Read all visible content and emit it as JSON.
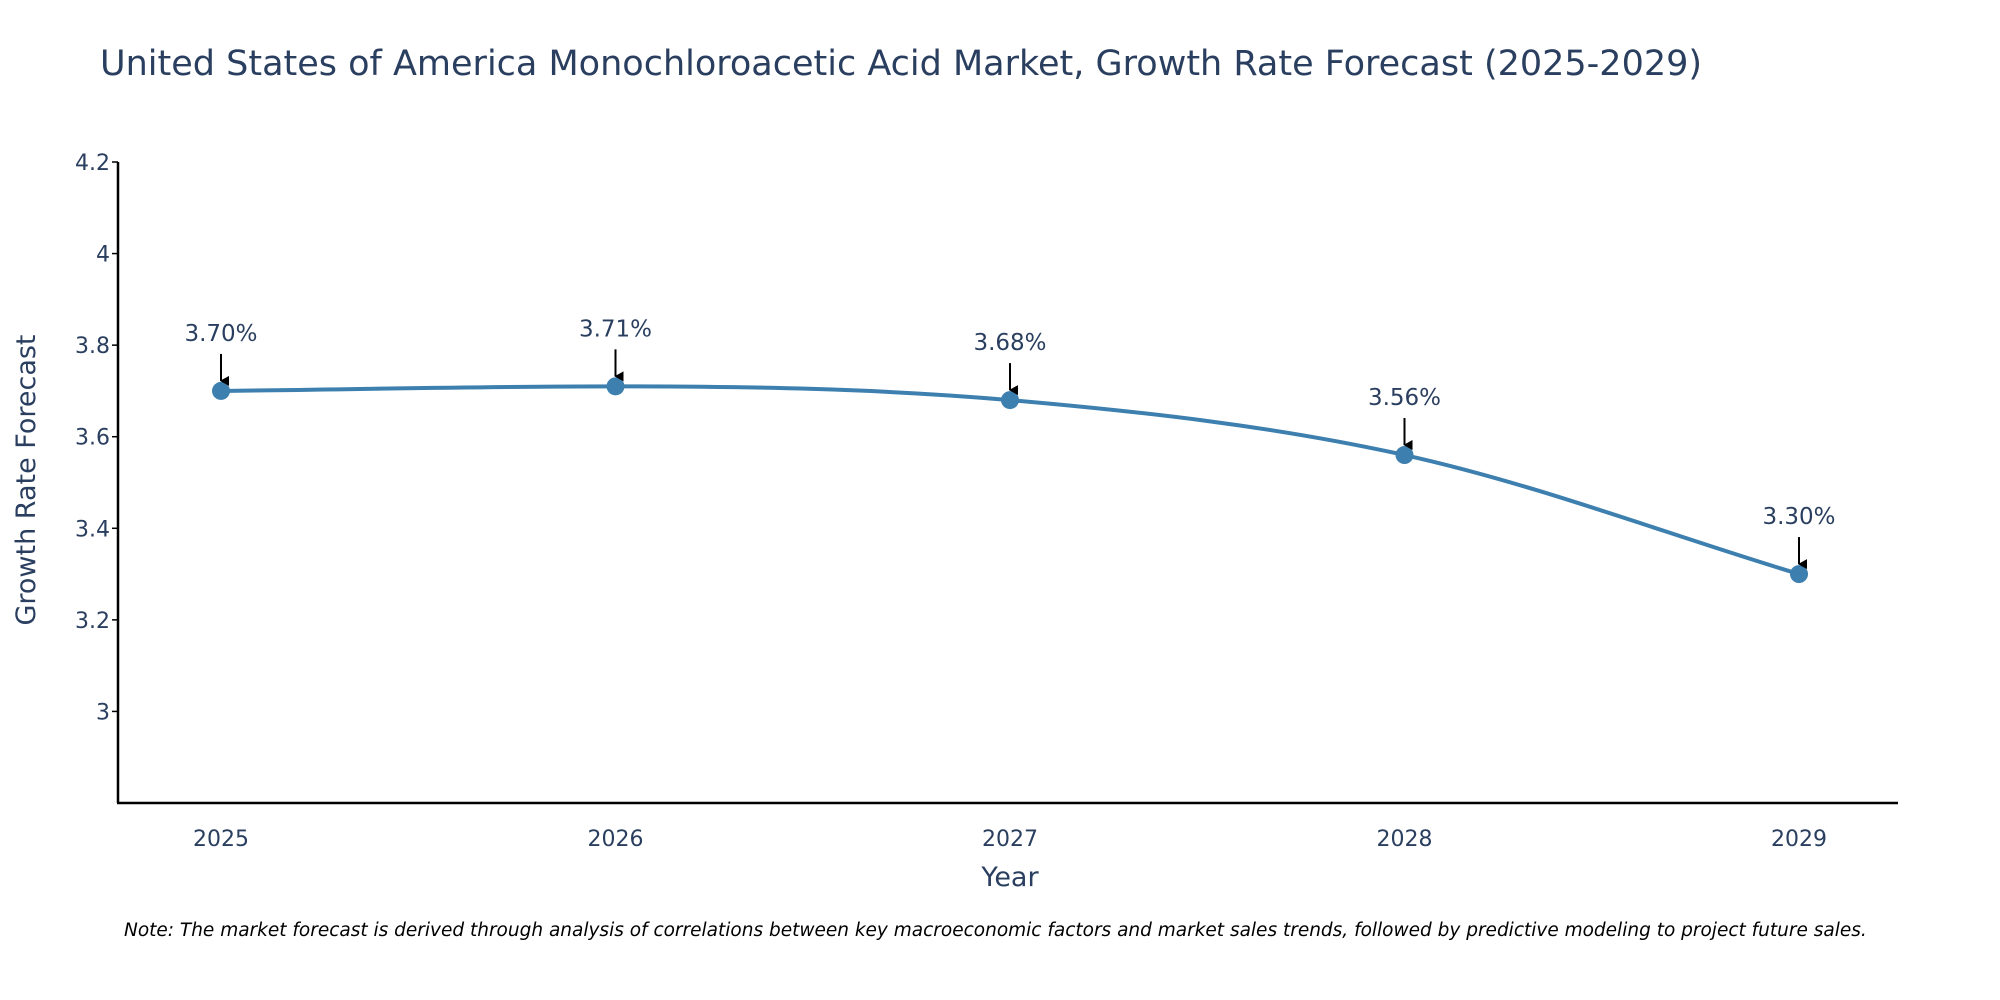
{
  "chart_data": {
    "type": "line",
    "title": "United States of America Monochloroacetic Acid Market, Growth Rate Forecast (2025-2029)",
    "xlabel": "Year",
    "ylabel": "Growth Rate Forecast",
    "categories": [
      "2025",
      "2026",
      "2027",
      "2028",
      "2029"
    ],
    "series": [
      {
        "name": "Growth Rate Forecast",
        "values": [
          3.7,
          3.71,
          3.68,
          3.56,
          3.3
        ],
        "labels": [
          "3.70%",
          "3.71%",
          "3.68%",
          "3.56%",
          "3.30%"
        ]
      }
    ],
    "ylim": [
      2.8,
      4.2
    ],
    "yticks": [
      3,
      3.2,
      3.4,
      3.6,
      3.8,
      4,
      4.2
    ],
    "ytick_labels": [
      "3",
      "3.2",
      "3.4",
      "3.6",
      "3.8",
      "4",
      "4.2"
    ],
    "grid": false,
    "line_color": "#3d7fae",
    "marker_color": "#3d7fae",
    "arrow_color": "#000000",
    "line_shape": "spline"
  },
  "note": "Note: The market forecast is derived through analysis of correlations between key macroeconomic factors and market sales trends, followed by predictive modeling to project future sales."
}
